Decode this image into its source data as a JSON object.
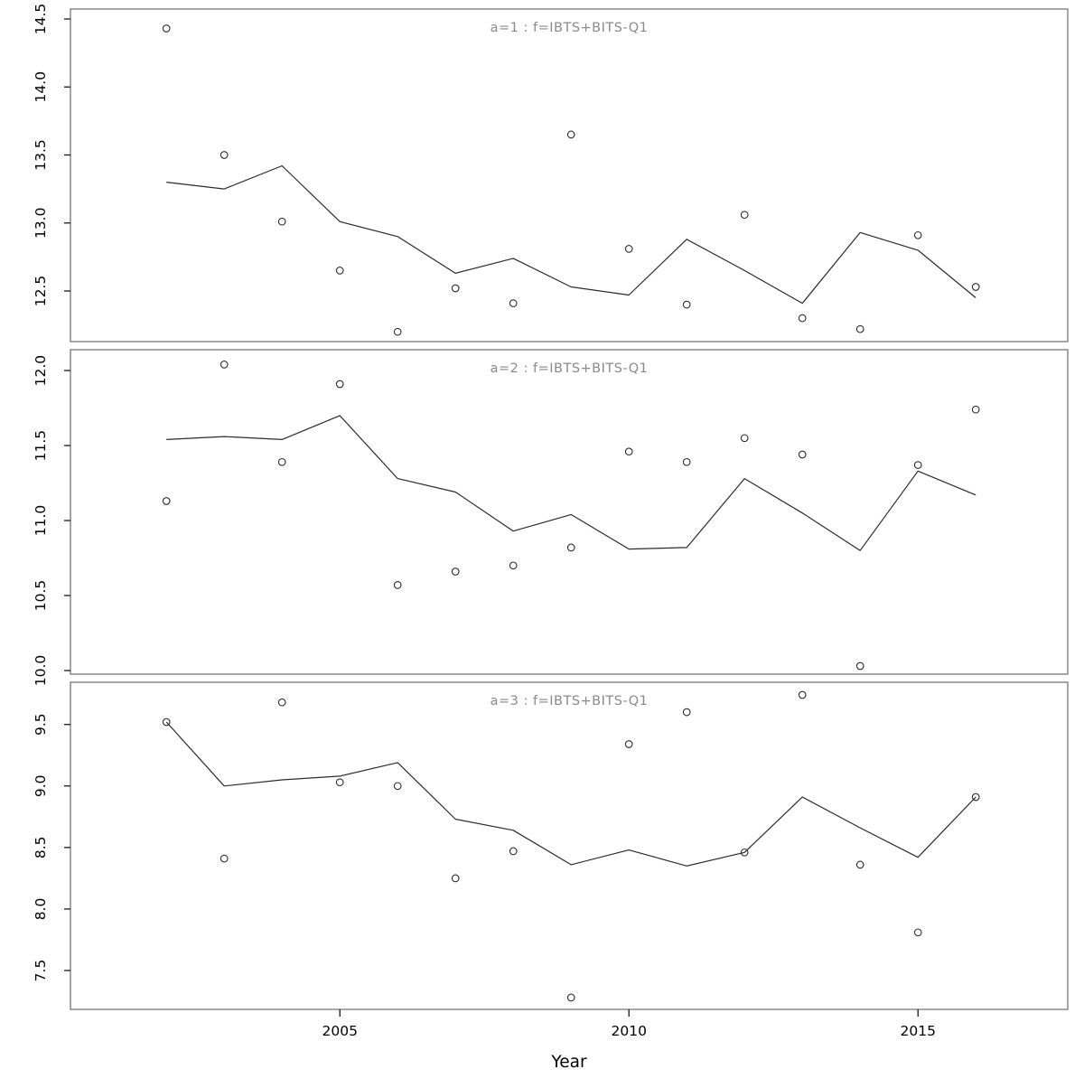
{
  "figure": {
    "xlabel": "Year",
    "background": "#ffffff",
    "panel_border_color": "#7f7f7f",
    "title_color": "#8a8a8a",
    "line_color": "#2b2b2b",
    "point_color": "#2b2b2b",
    "tick_color": "#1a1a1a",
    "tick_label_color": "#000000",
    "x_ticks": [
      2005,
      2010,
      2015
    ],
    "x_tick_labels": [
      "2005",
      "2010",
      "2015"
    ]
  },
  "chart_data": [
    {
      "id": "a1",
      "type": "scatter",
      "title": "a=1 : f=IBTS+BITS-Q1",
      "xlabel": "Year",
      "ylabel": "",
      "xlim": [
        2000.34,
        2017.59
      ],
      "ylim": [
        12.128,
        14.573
      ],
      "grid": false,
      "legend_position": "none",
      "x": [
        2002,
        2003,
        2004,
        2005,
        2006,
        2007,
        2008,
        2009,
        2010,
        2011,
        2012,
        2013,
        2014,
        2015,
        2016
      ],
      "yticks": [
        {
          "value": 12.5,
          "label": "12.5"
        },
        {
          "value": 13.0,
          "label": "13.0"
        },
        {
          "value": 13.5,
          "label": "13.5"
        },
        {
          "value": 14.0,
          "label": "14.0"
        },
        {
          "value": 14.5,
          "label": "14.5"
        }
      ],
      "series": [
        {
          "name": "observations",
          "style": "points",
          "values": [
            14.43,
            13.5,
            13.01,
            12.65,
            12.2,
            12.52,
            12.41,
            13.65,
            12.81,
            12.4,
            13.06,
            12.3,
            12.22,
            12.91,
            12.53
          ]
        },
        {
          "name": "fitted-line",
          "style": "line",
          "values": [
            13.3,
            13.25,
            13.42,
            13.01,
            12.9,
            12.63,
            12.74,
            12.53,
            12.47,
            12.88,
            12.65,
            12.41,
            12.93,
            12.8,
            12.45
          ]
        }
      ]
    },
    {
      "id": "a2",
      "type": "scatter",
      "title": "a=2 : f=IBTS+BITS-Q1",
      "xlabel": "Year",
      "ylabel": "",
      "xlim": [
        2000.34,
        2017.59
      ],
      "ylim": [
        9.976,
        12.139
      ],
      "grid": false,
      "legend_position": "none",
      "x": [
        2002,
        2003,
        2004,
        2005,
        2006,
        2007,
        2008,
        2009,
        2010,
        2011,
        2012,
        2013,
        2014,
        2015,
        2016
      ],
      "yticks": [
        {
          "value": 10.0,
          "label": "10.0"
        },
        {
          "value": 10.5,
          "label": "10.5"
        },
        {
          "value": 11.0,
          "label": "11.0"
        },
        {
          "value": 11.5,
          "label": "11.5"
        },
        {
          "value": 12.0,
          "label": "12.0"
        }
      ],
      "series": [
        {
          "name": "observations",
          "style": "points",
          "values": [
            11.13,
            12.04,
            11.39,
            11.91,
            10.57,
            10.66,
            10.7,
            10.82,
            11.46,
            11.39,
            11.55,
            11.44,
            10.03,
            11.37,
            11.74
          ]
        },
        {
          "name": "fitted-line",
          "style": "line",
          "values": [
            11.54,
            11.56,
            11.54,
            11.7,
            11.28,
            11.19,
            10.93,
            11.04,
            10.81,
            10.82,
            11.28,
            11.05,
            10.8,
            11.33,
            11.17
          ]
        }
      ]
    },
    {
      "id": "a3",
      "type": "scatter",
      "title": "a=3 : f=IBTS+BITS-Q1",
      "xlabel": "Year",
      "ylabel": "",
      "xlim": [
        2000.34,
        2017.59
      ],
      "ylim": [
        7.184,
        9.843
      ],
      "grid": false,
      "legend_position": "none",
      "x": [
        2002,
        2003,
        2004,
        2005,
        2006,
        2007,
        2008,
        2009,
        2010,
        2011,
        2012,
        2013,
        2014,
        2015,
        2016
      ],
      "yticks": [
        {
          "value": 7.5,
          "label": "7.5"
        },
        {
          "value": 8.0,
          "label": "8.0"
        },
        {
          "value": 8.5,
          "label": "8.5"
        },
        {
          "value": 9.0,
          "label": "9.0"
        },
        {
          "value": 9.5,
          "label": "9.5"
        }
      ],
      "series": [
        {
          "name": "observations",
          "style": "points",
          "values": [
            9.52,
            8.41,
            9.68,
            9.03,
            9.0,
            8.25,
            8.47,
            7.28,
            9.34,
            9.6,
            8.46,
            9.74,
            8.36,
            7.81,
            8.91
          ]
        },
        {
          "name": "fitted-line",
          "style": "line",
          "values": [
            9.52,
            9.0,
            9.05,
            9.08,
            9.19,
            8.73,
            8.64,
            8.36,
            8.48,
            8.35,
            8.46,
            8.91,
            8.66,
            8.42,
            8.91
          ]
        }
      ]
    }
  ]
}
